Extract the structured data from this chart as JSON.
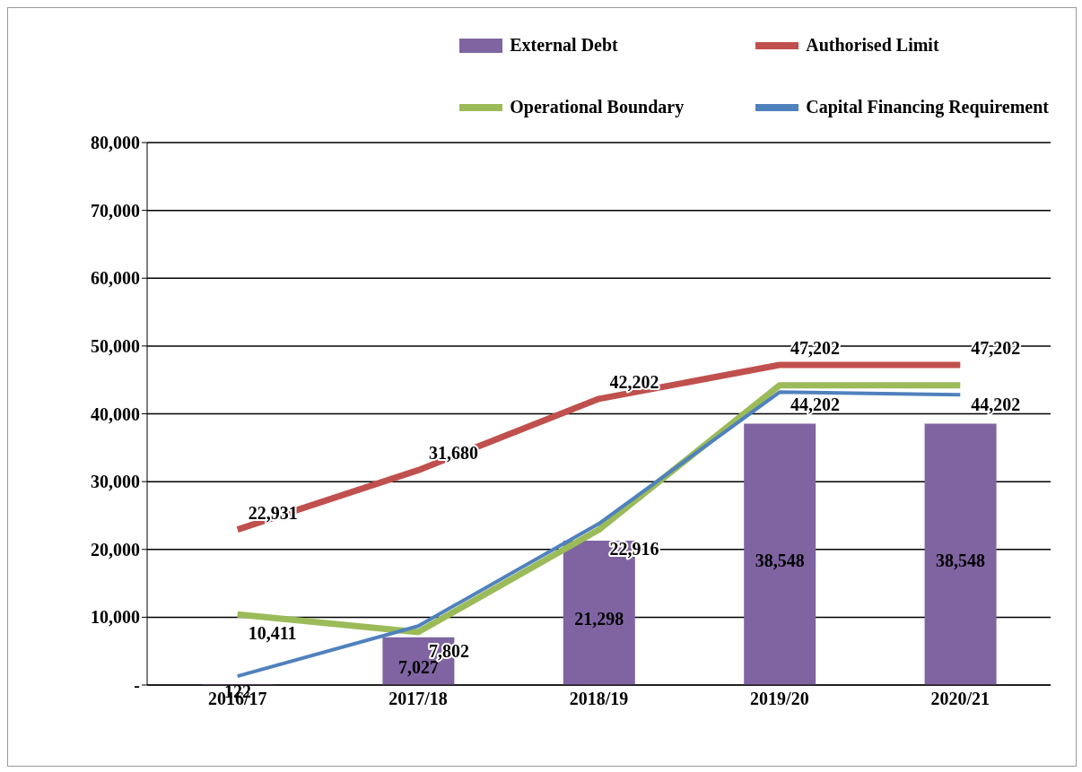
{
  "chart_data": {
    "type": "bar",
    "categories": [
      "2016/17",
      "2017/18",
      "2018/19",
      "2019/20",
      "2020/21"
    ],
    "series": [
      {
        "name": "External Debt",
        "color": "#8064a2",
        "values": [
          122,
          7027,
          21298,
          38548,
          38548
        ],
        "value_labels": [
          "122",
          "7,027",
          "21,298",
          "38,548",
          "38,548"
        ]
      },
      {
        "name": "Authorised Limit",
        "type": "line",
        "color": "#c0504d",
        "values": [
          22931,
          31680,
          42202,
          47202,
          47202
        ],
        "value_labels": [
          "22,931",
          "31,680",
          "42,202",
          "47,202",
          "47,202"
        ]
      },
      {
        "name": "Operational Boundary",
        "type": "line",
        "color": "#9bbb59",
        "values": [
          10411,
          7802,
          22916,
          44202,
          44202
        ],
        "value_labels": [
          "10,411",
          "7,802",
          "22,916",
          "44,202",
          "44,202"
        ]
      },
      {
        "name": "Capital Financing Requirement",
        "type": "line",
        "color": "#4f81bd",
        "values": [
          1300,
          8700,
          23800,
          43200,
          42800
        ]
      }
    ],
    "ylim": [
      0,
      80000
    ],
    "yticks": [
      {
        "value": 0,
        "label": "-"
      },
      {
        "value": 10000,
        "label": "10,000"
      },
      {
        "value": 20000,
        "label": "20,000"
      },
      {
        "value": 30000,
        "label": "30,000"
      },
      {
        "value": 40000,
        "label": "40,000"
      },
      {
        "value": 50000,
        "label": "50,000"
      },
      {
        "value": 60000,
        "label": "60,000"
      },
      {
        "value": 70000,
        "label": "70,000"
      },
      {
        "value": 80000,
        "label": "80,000"
      }
    ],
    "grid": "y",
    "legend": "top right",
    "marker": "none",
    "line_style": "solid"
  }
}
